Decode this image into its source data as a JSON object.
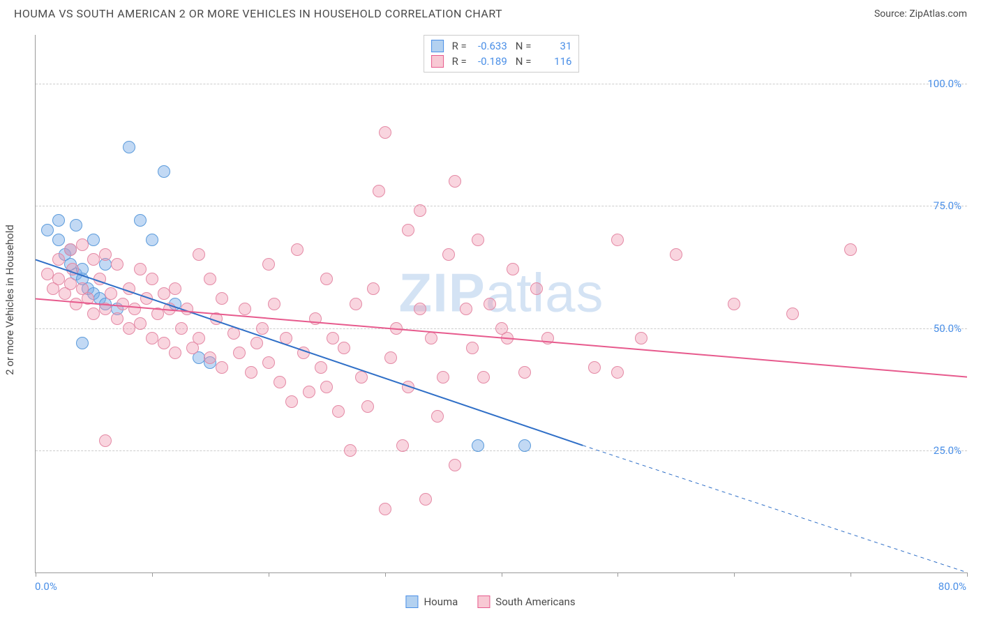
{
  "title": "HOUMA VS SOUTH AMERICAN 2 OR MORE VEHICLES IN HOUSEHOLD CORRELATION CHART",
  "source_label": "Source:",
  "source_name": "ZipAtlas.com",
  "y_axis_label": "2 or more Vehicles in Household",
  "watermark_a": "ZIP",
  "watermark_b": "atlas",
  "chart": {
    "xlim": [
      0,
      80
    ],
    "ylim": [
      0,
      110
    ],
    "y_gridlines": [
      25,
      50,
      75,
      100
    ],
    "y_tick_labels": [
      "25.0%",
      "50.0%",
      "75.0%",
      "100.0%"
    ],
    "x_ticks": [
      0,
      10,
      20,
      30,
      40,
      50,
      60,
      70,
      80
    ],
    "x_tick_labels": {
      "0": "0.0%",
      "80": "80.0%"
    },
    "background_color": "#ffffff",
    "grid_color": "#cccccc",
    "axis_color": "#999999",
    "point_radius": 9,
    "point_border_width": 1.5
  },
  "legend_top": [
    {
      "swatch_fill": "#b3d1f0",
      "swatch_border": "#4a8fe7",
      "r_label": "R =",
      "r_value": "-0.633",
      "n_label": "N =",
      "n_value": "31"
    },
    {
      "swatch_fill": "#f8c9d4",
      "swatch_border": "#e75a8d",
      "r_label": "R =",
      "r_value": "-0.189",
      "n_label": "N =",
      "n_value": "116"
    }
  ],
  "legend_bottom": [
    {
      "swatch_fill": "#b3d1f0",
      "swatch_border": "#4a8fe7",
      "label": "Houma"
    },
    {
      "swatch_fill": "#f8c9d4",
      "swatch_border": "#e75a8d",
      "label": "South Americans"
    }
  ],
  "series": [
    {
      "name": "Houma",
      "fill": "rgba(120,170,230,0.45)",
      "border": "#5b9bdb",
      "trend": {
        "x1": 0,
        "y1": 64,
        "x2_solid": 47,
        "y2_solid": 26,
        "x2_dash": 80,
        "y2_dash": 0,
        "color": "#2f6fc7",
        "width": 2
      },
      "points": [
        [
          1,
          70
        ],
        [
          2,
          72
        ],
        [
          2,
          68
        ],
        [
          2.5,
          65
        ],
        [
          3,
          63
        ],
        [
          3,
          66
        ],
        [
          3.5,
          61
        ],
        [
          3.5,
          71
        ],
        [
          4,
          60
        ],
        [
          4,
          62
        ],
        [
          4.5,
          58
        ],
        [
          5,
          68
        ],
        [
          5,
          57
        ],
        [
          5.5,
          56
        ],
        [
          6,
          63
        ],
        [
          6,
          55
        ],
        [
          7,
          54
        ],
        [
          8,
          87
        ],
        [
          9,
          72
        ],
        [
          10,
          68
        ],
        [
          11,
          82
        ],
        [
          12,
          55
        ],
        [
          14,
          44
        ],
        [
          15,
          43
        ],
        [
          4,
          47
        ],
        [
          38,
          26
        ],
        [
          42,
          26
        ]
      ]
    },
    {
      "name": "South Americans",
      "fill": "rgba(240,150,175,0.4)",
      "border": "#e489a5",
      "trend": {
        "x1": 0,
        "y1": 56,
        "x2_solid": 80,
        "y2_solid": 40,
        "color": "#e75a8d",
        "width": 2
      },
      "points": [
        [
          1,
          61
        ],
        [
          1.5,
          58
        ],
        [
          2,
          64
        ],
        [
          2,
          60
        ],
        [
          2.5,
          57
        ],
        [
          3,
          66
        ],
        [
          3,
          59
        ],
        [
          3.2,
          62
        ],
        [
          3.5,
          55
        ],
        [
          4,
          67
        ],
        [
          4,
          58
        ],
        [
          4.5,
          56
        ],
        [
          5,
          64
        ],
        [
          5,
          53
        ],
        [
          5.5,
          60
        ],
        [
          6,
          54
        ],
        [
          6,
          65
        ],
        [
          6.5,
          57
        ],
        [
          7,
          52
        ],
        [
          7,
          63
        ],
        [
          7.5,
          55
        ],
        [
          8,
          50
        ],
        [
          8,
          58
        ],
        [
          8.5,
          54
        ],
        [
          9,
          62
        ],
        [
          9,
          51
        ],
        [
          9.5,
          56
        ],
        [
          10,
          48
        ],
        [
          10,
          60
        ],
        [
          10.5,
          53
        ],
        [
          11,
          57
        ],
        [
          11,
          47
        ],
        [
          11.5,
          54
        ],
        [
          12,
          45
        ],
        [
          12,
          58
        ],
        [
          12.5,
          50
        ],
        [
          13,
          54
        ],
        [
          13.5,
          46
        ],
        [
          14,
          65
        ],
        [
          14,
          48
        ],
        [
          15,
          60
        ],
        [
          15,
          44
        ],
        [
          15.5,
          52
        ],
        [
          16,
          42
        ],
        [
          16,
          56
        ],
        [
          17,
          49
        ],
        [
          17.5,
          45
        ],
        [
          18,
          54
        ],
        [
          18.5,
          41
        ],
        [
          19,
          47
        ],
        [
          19.5,
          50
        ],
        [
          20,
          63
        ],
        [
          20,
          43
        ],
        [
          20.5,
          55
        ],
        [
          21,
          39
        ],
        [
          21.5,
          48
        ],
        [
          22,
          35
        ],
        [
          22.5,
          66
        ],
        [
          23,
          45
        ],
        [
          23.5,
          37
        ],
        [
          24,
          52
        ],
        [
          24.5,
          42
        ],
        [
          25,
          60
        ],
        [
          25,
          38
        ],
        [
          25.5,
          48
        ],
        [
          26,
          33
        ],
        [
          26.5,
          46
        ],
        [
          27,
          25
        ],
        [
          27.5,
          55
        ],
        [
          28,
          40
        ],
        [
          28.5,
          34
        ],
        [
          29,
          58
        ],
        [
          29.5,
          78
        ],
        [
          30,
          13
        ],
        [
          30,
          90
        ],
        [
          30.5,
          44
        ],
        [
          31,
          50
        ],
        [
          31.5,
          26
        ],
        [
          32,
          70
        ],
        [
          32,
          38
        ],
        [
          33,
          54
        ],
        [
          33,
          74
        ],
        [
          33.5,
          15
        ],
        [
          34,
          48
        ],
        [
          34.5,
          32
        ],
        [
          35,
          40
        ],
        [
          35.5,
          65
        ],
        [
          36,
          80
        ],
        [
          36,
          22
        ],
        [
          37,
          54
        ],
        [
          37.5,
          46
        ],
        [
          38,
          68
        ],
        [
          38.5,
          40
        ],
        [
          39,
          55
        ],
        [
          40,
          50
        ],
        [
          40.5,
          48
        ],
        [
          41,
          62
        ],
        [
          42,
          41
        ],
        [
          43,
          58
        ],
        [
          44,
          48
        ],
        [
          48,
          42
        ],
        [
          50,
          68
        ],
        [
          50,
          41
        ],
        [
          52,
          48
        ],
        [
          55,
          65
        ],
        [
          60,
          55
        ],
        [
          65,
          53
        ],
        [
          70,
          66
        ],
        [
          6,
          27
        ]
      ]
    }
  ]
}
